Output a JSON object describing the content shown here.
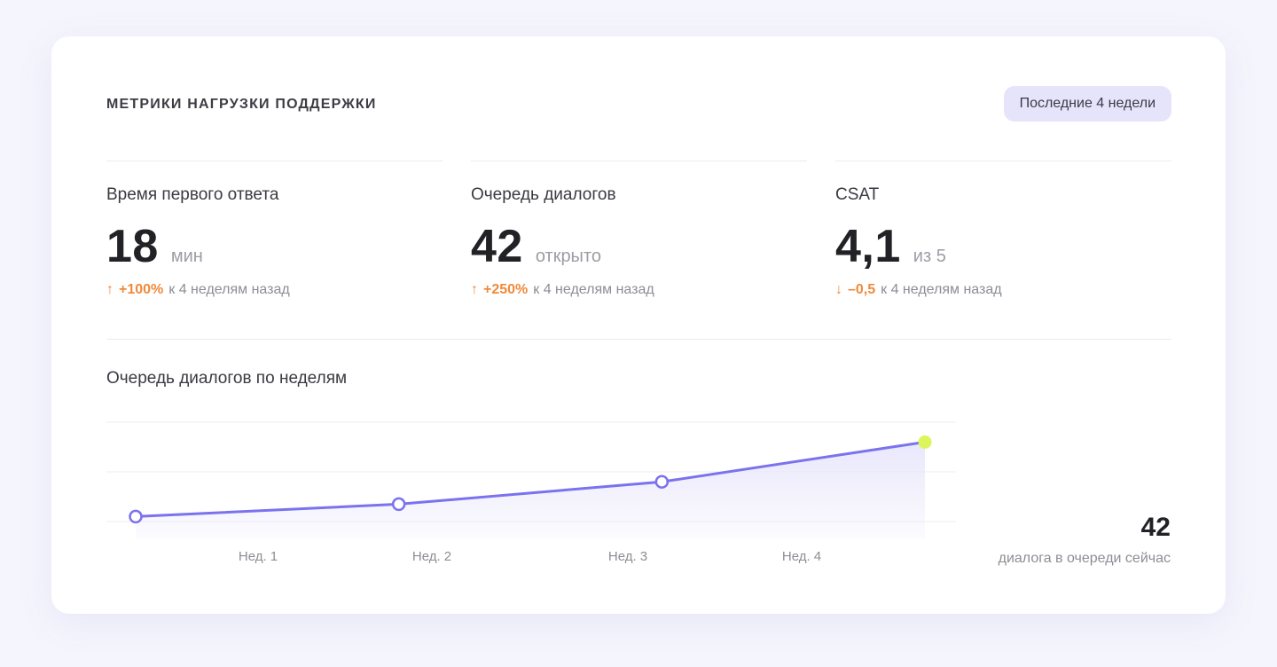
{
  "header": {
    "title": "МЕТРИКИ НАГРУЗКИ ПОДДЕРЖКИ",
    "period_button": "Последние 4 недели"
  },
  "metrics": [
    {
      "label": "Время первого ответа",
      "value": "18",
      "unit": "мин",
      "delta_arrow": "↑",
      "delta_value": "+100%",
      "delta_caption": "к 4 неделям назад",
      "delta_color": "#f08a3c"
    },
    {
      "label": "Очередь диалогов",
      "value": "42",
      "unit": "открыто",
      "delta_arrow": "↑",
      "delta_value": "+250%",
      "delta_caption": "к 4 неделям назад",
      "delta_color": "#f08a3c"
    },
    {
      "label": "CSAT",
      "value": "4,1",
      "unit": "из 5",
      "delta_arrow": "↓",
      "delta_value": "–0,5",
      "delta_caption": "к 4 неделям назад",
      "delta_color": "#f08a3c"
    }
  ],
  "chart": {
    "title": "Очередь диалогов по неделям",
    "summary_value": "42",
    "summary_caption": "диалога в очереди сейчас"
  },
  "chart_data": {
    "type": "area",
    "categories": [
      "Нед. 1",
      "Нед. 2",
      "Нед. 3",
      "Нед. 4"
    ],
    "x": [
      1,
      2,
      3,
      4
    ],
    "values": [
      12,
      17,
      26,
      42
    ],
    "ylim": [
      10,
      50
    ],
    "grid": true,
    "line_color": "#7b72ee",
    "fill_color": "#e9e7fb",
    "highlight_color": "#dcf55a",
    "point_fill": "#ffffff"
  },
  "colors": {
    "accent": "#7b72ee",
    "delta": "#f08a3c",
    "badge_bg": "#e6e4fb",
    "page_bg": "#f5f5fd"
  }
}
